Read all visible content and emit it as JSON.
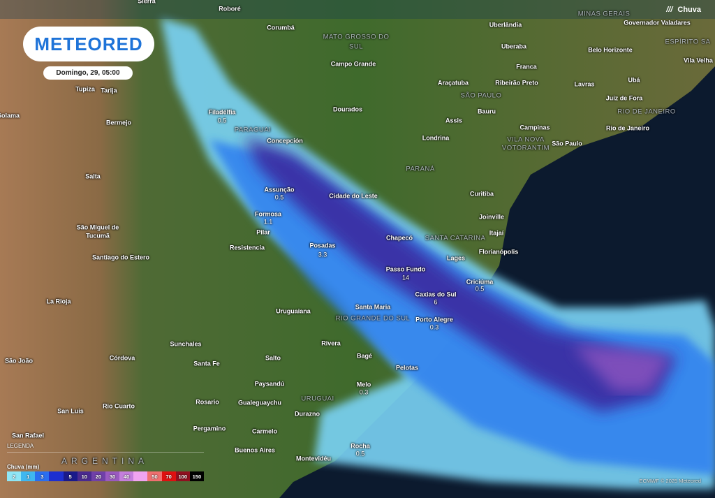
{
  "brand": "METEORED",
  "date": "Domingo, 29, 05:00",
  "layer": {
    "label": "Chuva",
    "icon": "rain-icon"
  },
  "legend": {
    "title": "LEGENDA",
    "unit": "Chuva (mm)",
    "steps": [
      {
        "v": "2",
        "c": "#8fe6f5"
      },
      {
        "v": "1",
        "c": "#3fb7f0"
      },
      {
        "v": "3",
        "c": "#2a6ef0"
      },
      {
        "v": "",
        "c": "#1d2fd0"
      },
      {
        "v": "5",
        "c": "#1a1a8a"
      },
      {
        "v": "10",
        "c": "#4a2a90"
      },
      {
        "v": "20",
        "c": "#7040a8"
      },
      {
        "v": "30",
        "c": "#9a5ac0"
      },
      {
        "v": "40",
        "c": "#c47fdc"
      },
      {
        "v": "",
        "c": "#f0a4f0"
      },
      {
        "v": "50",
        "c": "#f07070"
      },
      {
        "v": "70",
        "c": "#e01010"
      },
      {
        "v": "100",
        "c": "#901020"
      },
      {
        "v": "150",
        "c": "#000000"
      }
    ]
  },
  "credit": "ECMWF © 2025 Meteored",
  "labels": [
    "Sierra",
    "Roboré",
    "MINAS GERAIS",
    "Corumbá",
    "MATO GROSSO DO",
    "SUL",
    "Uberlândia",
    "Governador Valadares",
    "ESPÍRITO SA",
    "Uberaba",
    "Belo Horizonte",
    "Campo Grande",
    "Franca",
    "Vila Velha",
    "Araçatuba",
    "Ribeirão Preto",
    "Lavras",
    "Ubá",
    "Juiz de Fora",
    "SÃO PAULO",
    "Bauru",
    "RIO DE JANEIRO",
    "Dourados",
    "Filadélfia",
    "0.5",
    "Assis",
    "Tupiza",
    "Tarija",
    "Bermejo",
    "Solama",
    "Campinas",
    "Rio de Janeiro",
    "Londrina",
    "VILA NOVA",
    "VOTORANTIM",
    "São Paulo",
    "PARAGUAI",
    "Concepción",
    "PARANÁ",
    "Salta",
    "Curitiba",
    "Assunção",
    "0.5",
    "Cidade do Leste",
    "Formosa",
    "1.1",
    "Joinville",
    "São Miguel de",
    "Tucumã",
    "Pilar",
    "Itajaí",
    "Chapecó",
    "SANTA CATARINA",
    "Resistencia",
    "Posadas",
    "3.3",
    "Florianópolis",
    "Santiago do Estero",
    "Lages",
    "Passo Fundo",
    "14",
    "Criciúma",
    "0.5",
    "Caxias do Sul",
    "6",
    "La Rioja",
    "Uruguaiana",
    "Santa Maria",
    "RIO GRANDE DO SUL",
    "Porto Alegre",
    "0.3",
    "Sunchales",
    "Rivera",
    "Córdova",
    "São João",
    "Santa Fe",
    "Salto",
    "Bagé",
    "Pelotas",
    "Paysandú",
    "Melo",
    "0.3",
    "URUGUAI",
    "Rio Cuarto",
    "Gualeguaychu",
    "San Luis",
    "Rosario",
    "Durazno",
    "Pergamino",
    "Carmelo",
    "San Rafael",
    "Buenos Aires",
    "Rocha",
    "0.5",
    "Montevidéu",
    "ARGENTINA"
  ]
}
